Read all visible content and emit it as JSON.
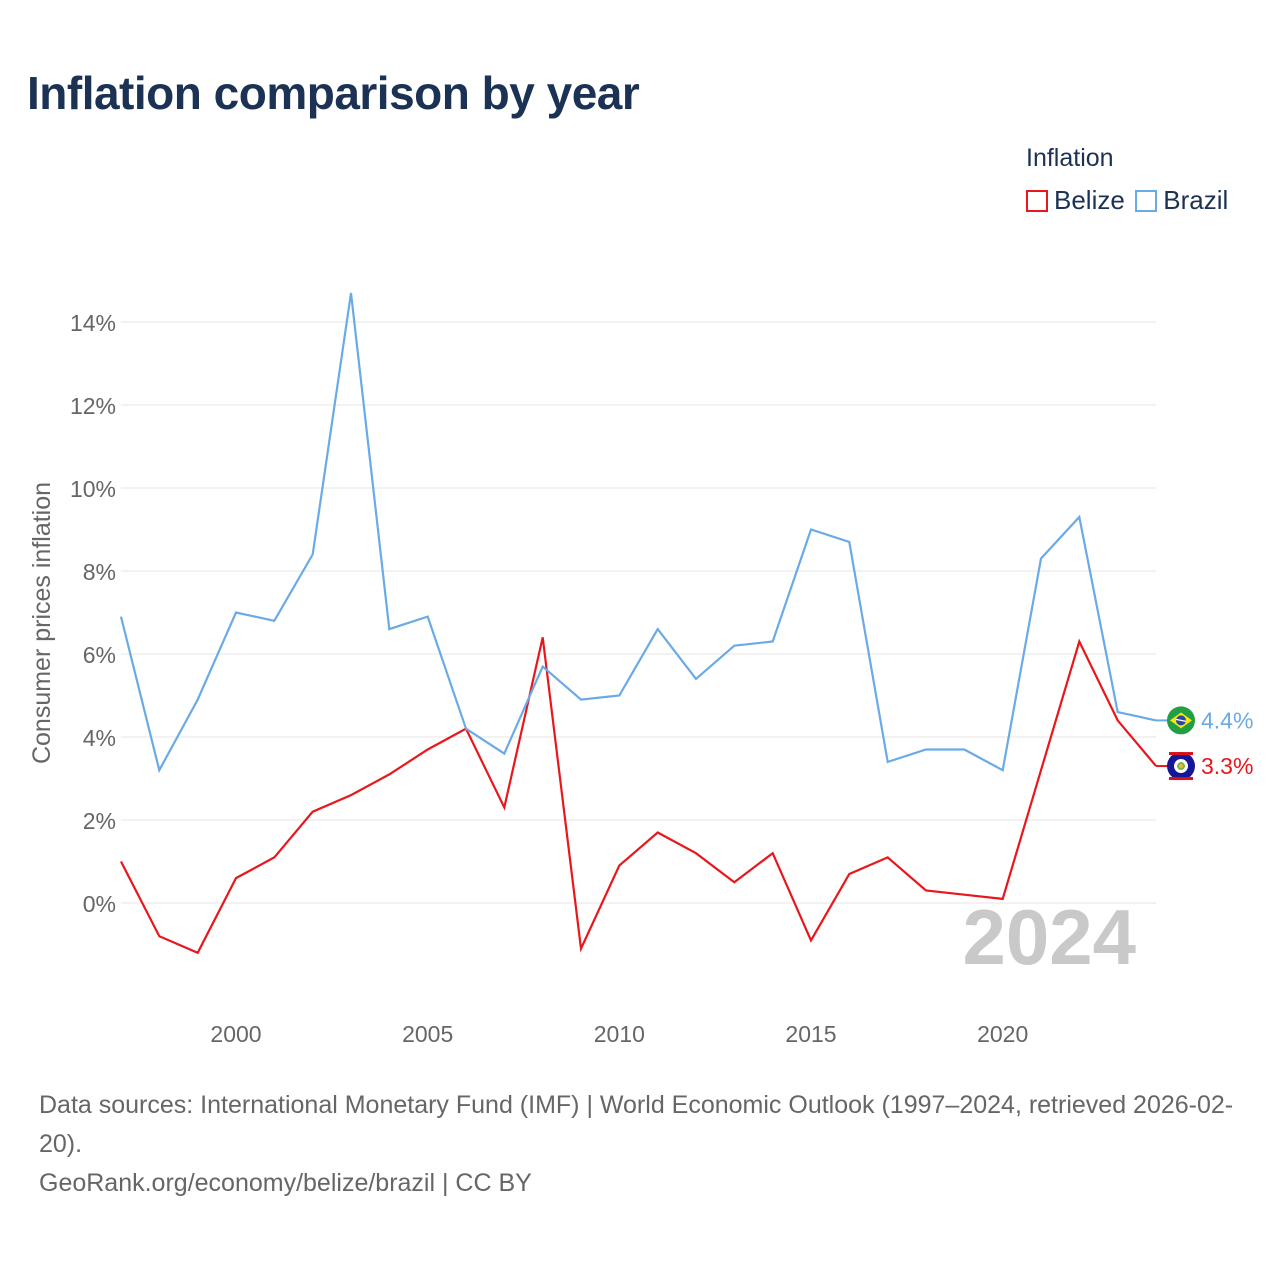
{
  "chart_data": {
    "type": "line",
    "title": "Inflation comparison by year",
    "ylabel": "Consumer prices inflation",
    "xlabel": "",
    "xlim": [
      1997,
      2024
    ],
    "ylim": [
      -2,
      15
    ],
    "x_ticks": [
      2000,
      2005,
      2010,
      2015,
      2020
    ],
    "y_ticks": [
      0,
      2,
      4,
      6,
      8,
      10,
      12,
      14
    ],
    "y_tick_labels": [
      "0%",
      "2%",
      "4%",
      "6%",
      "8%",
      "10%",
      "12%",
      "14%"
    ],
    "grid": "horizontal",
    "legend_title": "Inflation",
    "legend_position": "top-right",
    "x": [
      1997,
      1998,
      1999,
      2000,
      2001,
      2002,
      2003,
      2004,
      2005,
      2006,
      2007,
      2008,
      2009,
      2010,
      2011,
      2012,
      2013,
      2014,
      2015,
      2016,
      2017,
      2018,
      2019,
      2020,
      2021,
      2022,
      2023,
      2024
    ],
    "series": [
      {
        "name": "Belize",
        "color": "#e8171c",
        "icon": "belize-flag-icon",
        "end_label": "3.3%",
        "values": [
          1.0,
          -0.8,
          -1.2,
          0.6,
          1.1,
          2.2,
          2.6,
          3.1,
          3.7,
          4.2,
          2.3,
          6.4,
          -1.1,
          0.9,
          1.7,
          1.2,
          0.5,
          1.2,
          -0.9,
          0.7,
          1.1,
          0.3,
          0.2,
          0.1,
          3.2,
          6.3,
          4.4,
          3.3
        ]
      },
      {
        "name": "Brazil",
        "color": "#6aaae6",
        "icon": "brazil-flag-icon",
        "end_label": "4.4%",
        "values": [
          6.9,
          3.2,
          4.9,
          7.0,
          6.8,
          8.4,
          14.7,
          6.6,
          6.9,
          4.2,
          3.6,
          5.7,
          4.9,
          5.0,
          6.6,
          5.4,
          6.2,
          6.3,
          9.0,
          8.7,
          3.4,
          3.7,
          3.7,
          3.2,
          8.3,
          9.3,
          4.6,
          4.4
        ]
      }
    ],
    "watermark_year": "2024"
  },
  "footer": {
    "sources": "Data sources: International Monetary Fund (IMF) | World Economic Outlook (1997–2024, retrieved 2026-02-20).",
    "credit": "GeoRank.org/economy/belize/brazil | CC BY"
  }
}
